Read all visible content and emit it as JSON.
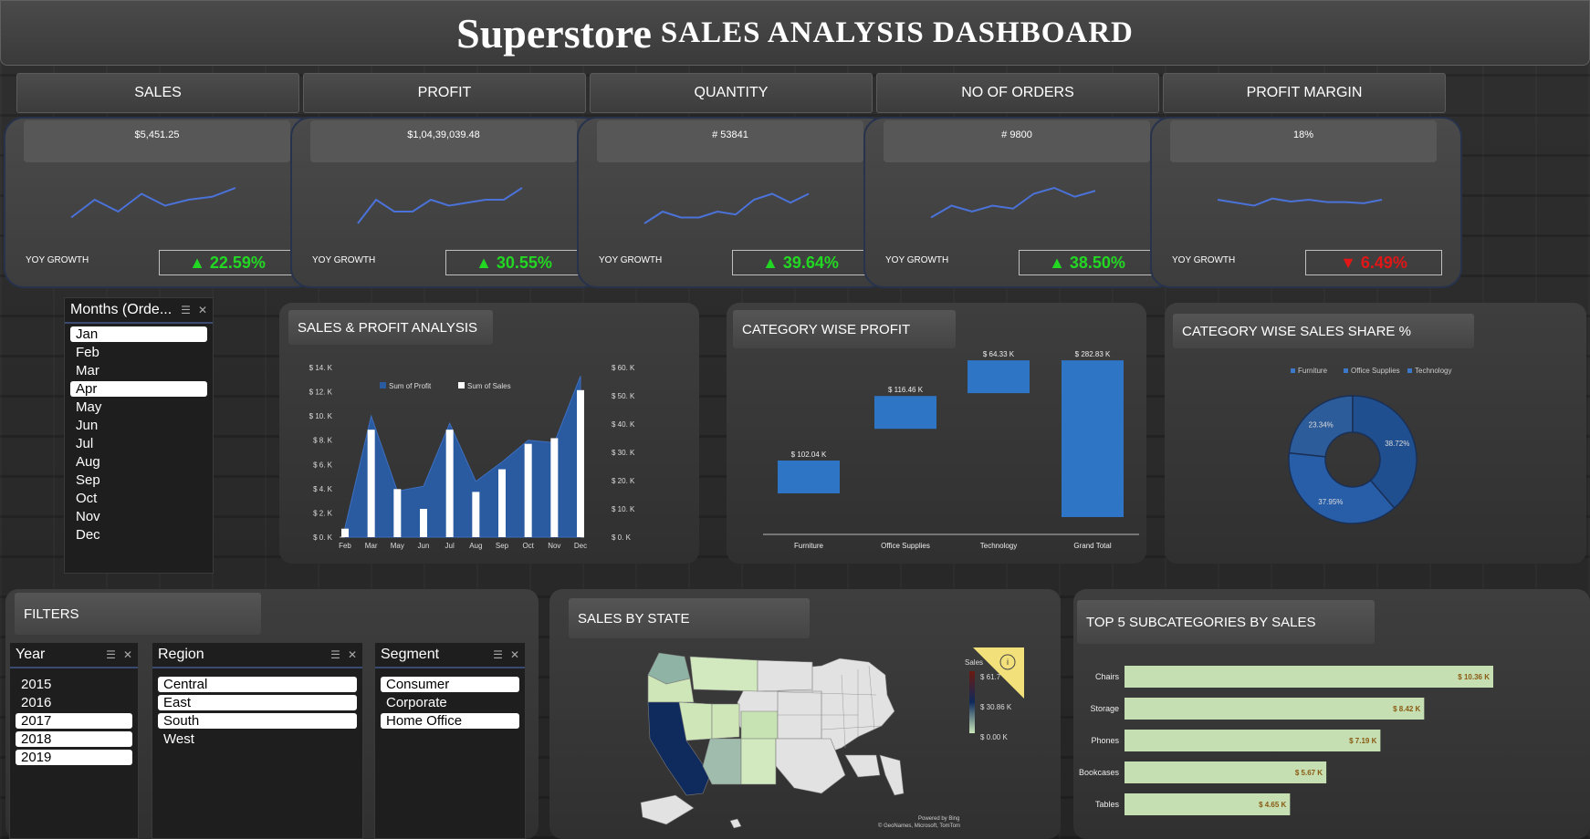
{
  "title": {
    "main": "Superstore",
    "sub": "SALES ANALYSIS DASHBOARD"
  },
  "kpis": [
    {
      "label": "SALES",
      "value": "$5,451.25",
      "yoy_label": "YOY GROWTH",
      "yoy": "▲ 22.59%",
      "direction": "up",
      "trend": [
        3,
        6,
        4,
        7,
        5,
        6,
        6.5,
        8
      ]
    },
    {
      "label": "PROFIT",
      "value": "$1,04,39,039.48",
      "yoy_label": "YOY GROWTH",
      "yoy": "▲ 30.55%",
      "direction": "up",
      "trend": [
        2,
        6,
        4,
        4,
        6,
        5,
        5.5,
        6,
        6,
        8
      ]
    },
    {
      "label": "QUANTITY",
      "value": "# 53841",
      "yoy_label": "YOY GROWTH",
      "yoy": "▲ 39.64%",
      "direction": "up",
      "trend": [
        2,
        4,
        3,
        3,
        4,
        3.5,
        6,
        7,
        5.5,
        7
      ]
    },
    {
      "label": "NO OF ORDERS",
      "value": "# 9800",
      "yoy_label": "YOY GROWTH",
      "yoy": "▲ 38.50%",
      "direction": "up",
      "trend": [
        3,
        5,
        4,
        5,
        4.5,
        7,
        8,
        6.5,
        7.5
      ]
    },
    {
      "label": "PROFIT MARGIN",
      "value": "18%",
      "yoy_label": "YOY GROWTH",
      "yoy": "▼ 6.49%",
      "direction": "down",
      "trend": [
        6,
        5.5,
        5,
        6.2,
        5.7,
        6,
        5.6,
        5.6,
        5.4,
        6
      ]
    }
  ],
  "months_slicer": {
    "title": "Months (Orde...",
    "items": [
      {
        "label": "Jan",
        "selected": true
      },
      {
        "label": "Feb",
        "selected": false
      },
      {
        "label": "Mar",
        "selected": false
      },
      {
        "label": "Apr",
        "selected": true
      },
      {
        "label": "May",
        "selected": false
      },
      {
        "label": "Jun",
        "selected": false
      },
      {
        "label": "Jul",
        "selected": false
      },
      {
        "label": "Aug",
        "selected": false
      },
      {
        "label": "Sep",
        "selected": false
      },
      {
        "label": "Oct",
        "selected": false
      },
      {
        "label": "Nov",
        "selected": false
      },
      {
        "label": "Dec",
        "selected": false
      }
    ]
  },
  "filters": {
    "title": "FILTERS",
    "year": {
      "title": "Year",
      "items": [
        {
          "label": "2015",
          "selected": false
        },
        {
          "label": "2016",
          "selected": false
        },
        {
          "label": "2017",
          "selected": true
        },
        {
          "label": "2018",
          "selected": true
        },
        {
          "label": "2019",
          "selected": true
        }
      ]
    },
    "region": {
      "title": "Region",
      "items": [
        {
          "label": "Central",
          "selected": true
        },
        {
          "label": "East",
          "selected": true
        },
        {
          "label": "South",
          "selected": true
        },
        {
          "label": "West",
          "selected": false
        }
      ]
    },
    "segment": {
      "title": "Segment",
      "items": [
        {
          "label": "Consumer",
          "selected": true
        },
        {
          "label": "Corporate",
          "selected": false
        },
        {
          "label": "Home Office",
          "selected": true
        }
      ]
    }
  },
  "panels": {
    "sales_profit": "SALES & PROFIT ANALYSIS",
    "category_profit": "CATEGORY WISE PROFIT",
    "category_share": "CATEGORY WISE SALES SHARE %",
    "sales_by_state": "SALES BY STATE",
    "top5": "TOP 5 SUBCATEGORIES  BY SALES"
  },
  "map_legend": {
    "title": "Sales",
    "max": "$ 61.7",
    "mid": "$ 30.86 K",
    "min": "$ 0.00 K",
    "credit1": "Powered by Bing",
    "credit2": "© GeoNames, Microsoft, TomTom",
    "info": "i"
  },
  "colors": {
    "bar_blue": "#2e75c6",
    "area_blue": "#2a5aa0",
    "green_bar": "#c5dfb3",
    "up": "#22d822",
    "down": "#e21616",
    "spark": "#4a72d8"
  },
  "chart_data": [
    {
      "id": "sales_profit",
      "type": "area",
      "title": "SALES & PROFIT ANALYSIS",
      "categories": [
        "Feb",
        "Mar",
        "May",
        "Jun",
        "Jul",
        "Aug",
        "Sep",
        "Oct",
        "Nov",
        "Dec"
      ],
      "series": [
        {
          "name": "Sum of Profit",
          "kind": "area",
          "axis": "left",
          "values": [
            0.8,
            10.0,
            3.8,
            4.2,
            9.4,
            4.6,
            6.2,
            8.0,
            7.8,
            13.3
          ]
        },
        {
          "name": "Sum of Sales",
          "kind": "bar",
          "axis": "right",
          "values": [
            3,
            38,
            17,
            10,
            38,
            16,
            24,
            33,
            35,
            52
          ]
        }
      ],
      "y_left": {
        "ticks": [
          "$ 0. K",
          "$ 2. K",
          "$ 4. K",
          "$ 6. K",
          "$ 8. K",
          "$ 10. K",
          "$ 12. K",
          "$ 14. K"
        ],
        "range": [
          0,
          14
        ]
      },
      "y_right": {
        "ticks": [
          "$ 0. K",
          "$ 10. K",
          "$ 20. K",
          "$ 30. K",
          "$ 40. K",
          "$ 50. K",
          "$ 60. K"
        ],
        "range": [
          0,
          60
        ]
      }
    },
    {
      "id": "category_profit",
      "type": "bar",
      "subtype": "waterfall",
      "title": "CATEGORY WISE PROFIT",
      "categories": [
        "Furniture",
        "Office Supplies",
        "Technology",
        "Grand Total"
      ],
      "values": [
        102.04,
        116.46,
        64.33,
        282.83
      ],
      "labels": [
        "$ 102.04 K",
        "$ 116.46 K",
        "$ 64.33 K",
        "$ 282.83 K"
      ]
    },
    {
      "id": "category_share",
      "type": "pie",
      "subtype": "doughnut",
      "title": "CATEGORY WISE SALES SHARE %",
      "categories": [
        "Furniture",
        "Office Supplies",
        "Technology"
      ],
      "values": [
        23.34,
        37.95,
        38.72
      ],
      "labels": [
        "23.34%",
        "37.95%",
        "38.72%"
      ],
      "legend": "top"
    },
    {
      "id": "top5",
      "type": "bar",
      "orientation": "horizontal",
      "title": "TOP 5 SUBCATEGORIES  BY SALES",
      "categories": [
        "Chairs",
        "Storage",
        "Phones",
        "Bookcases",
        "Tables"
      ],
      "values": [
        10.36,
        8.42,
        7.19,
        5.67,
        4.65
      ],
      "labels": [
        "$ 10.36 K",
        "$ 8.42 K",
        "$ 7.19 K",
        "$ 5.67 K",
        "$ 4.65 K"
      ]
    }
  ]
}
